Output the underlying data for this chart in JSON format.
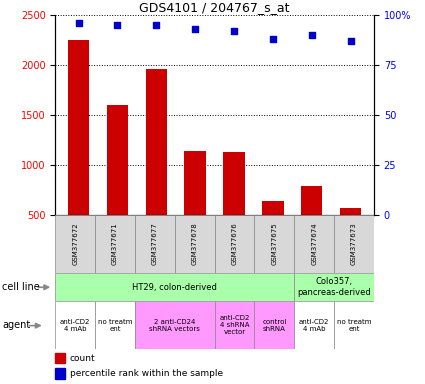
{
  "title": "GDS4101 / 204767_s_at",
  "samples": [
    "GSM377672",
    "GSM377671",
    "GSM377677",
    "GSM377678",
    "GSM377676",
    "GSM377675",
    "GSM377674",
    "GSM377673"
  ],
  "counts": [
    2250,
    1600,
    1960,
    1140,
    1130,
    640,
    790,
    570
  ],
  "percentiles": [
    96,
    95,
    95,
    93,
    92,
    88,
    90,
    87
  ],
  "bar_color": "#cc0000",
  "dot_color": "#0000cc",
  "ylim_left": [
    500,
    2500
  ],
  "ylim_right": [
    0,
    100
  ],
  "yticks_left": [
    500,
    1000,
    1500,
    2000,
    2500
  ],
  "yticks_right": [
    0,
    25,
    50,
    75,
    100
  ],
  "ytick_right_labels": [
    "0",
    "25",
    "50",
    "75",
    "100%"
  ],
  "cell_lines": [
    {
      "label": "HT29, colon-derived",
      "span": [
        0,
        6
      ],
      "color": "#aaffaa"
    },
    {
      "label": "Colo357,\npancreas-derived",
      "span": [
        6,
        8
      ],
      "color": "#aaffaa"
    }
  ],
  "agents": [
    {
      "label": "anti-CD2\n4 mAb",
      "span": [
        0,
        1
      ],
      "color": "#ffffff"
    },
    {
      "label": "no treatm\nent",
      "span": [
        1,
        2
      ],
      "color": "#ffffff"
    },
    {
      "label": "2 anti-CD24\nshRNA vectors",
      "span": [
        2,
        4
      ],
      "color": "#ff99ff"
    },
    {
      "label": "anti-CD2\n4 shRNA\nvector",
      "span": [
        4,
        5
      ],
      "color": "#ff99ff"
    },
    {
      "label": "control\nshRNA",
      "span": [
        5,
        6
      ],
      "color": "#ff99ff"
    },
    {
      "label": "anti-CD2\n4 mAb",
      "span": [
        6,
        7
      ],
      "color": "#ffffff"
    },
    {
      "label": "no treatm\nent",
      "span": [
        7,
        8
      ],
      "color": "#ffffff"
    }
  ],
  "legend_count_color": "#cc0000",
  "legend_dot_color": "#0000cc",
  "background_color": "#ffffff",
  "title_fontsize": 9,
  "tick_fontsize": 7,
  "sample_fontsize": 5,
  "cell_fontsize": 6,
  "agent_fontsize": 5,
  "legend_fontsize": 6.5,
  "label_fontsize": 7
}
